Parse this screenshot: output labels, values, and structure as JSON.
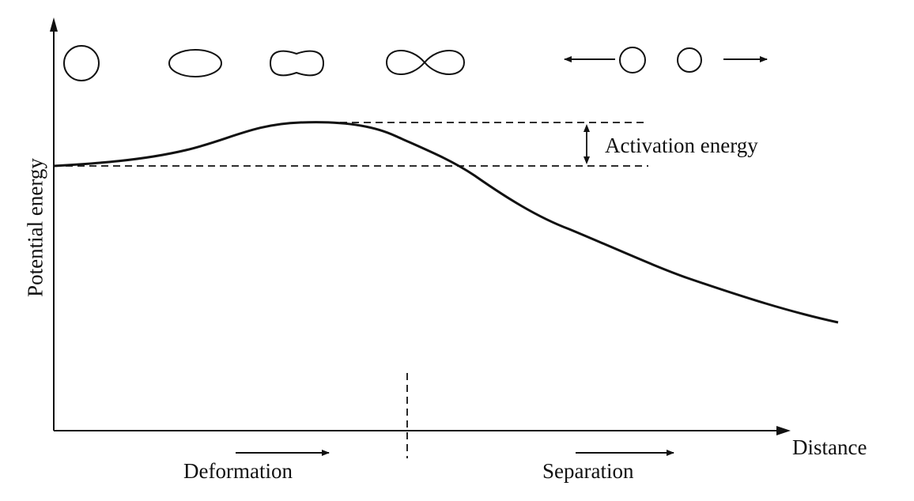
{
  "diagram": {
    "y_axis_label": "Potential energy",
    "x_axis_label": "Distance",
    "barrier_label": "Activation energy",
    "phase_labels": {
      "deformation": "Deformation",
      "separation": "Separation"
    },
    "shape_sequence": [
      "sphere-shape",
      "ellipsoid-shape",
      "necked-shape",
      "dumbbell-shape",
      "separating-fragments"
    ],
    "line_color": "#111111",
    "background_color": "#ffffff"
  }
}
